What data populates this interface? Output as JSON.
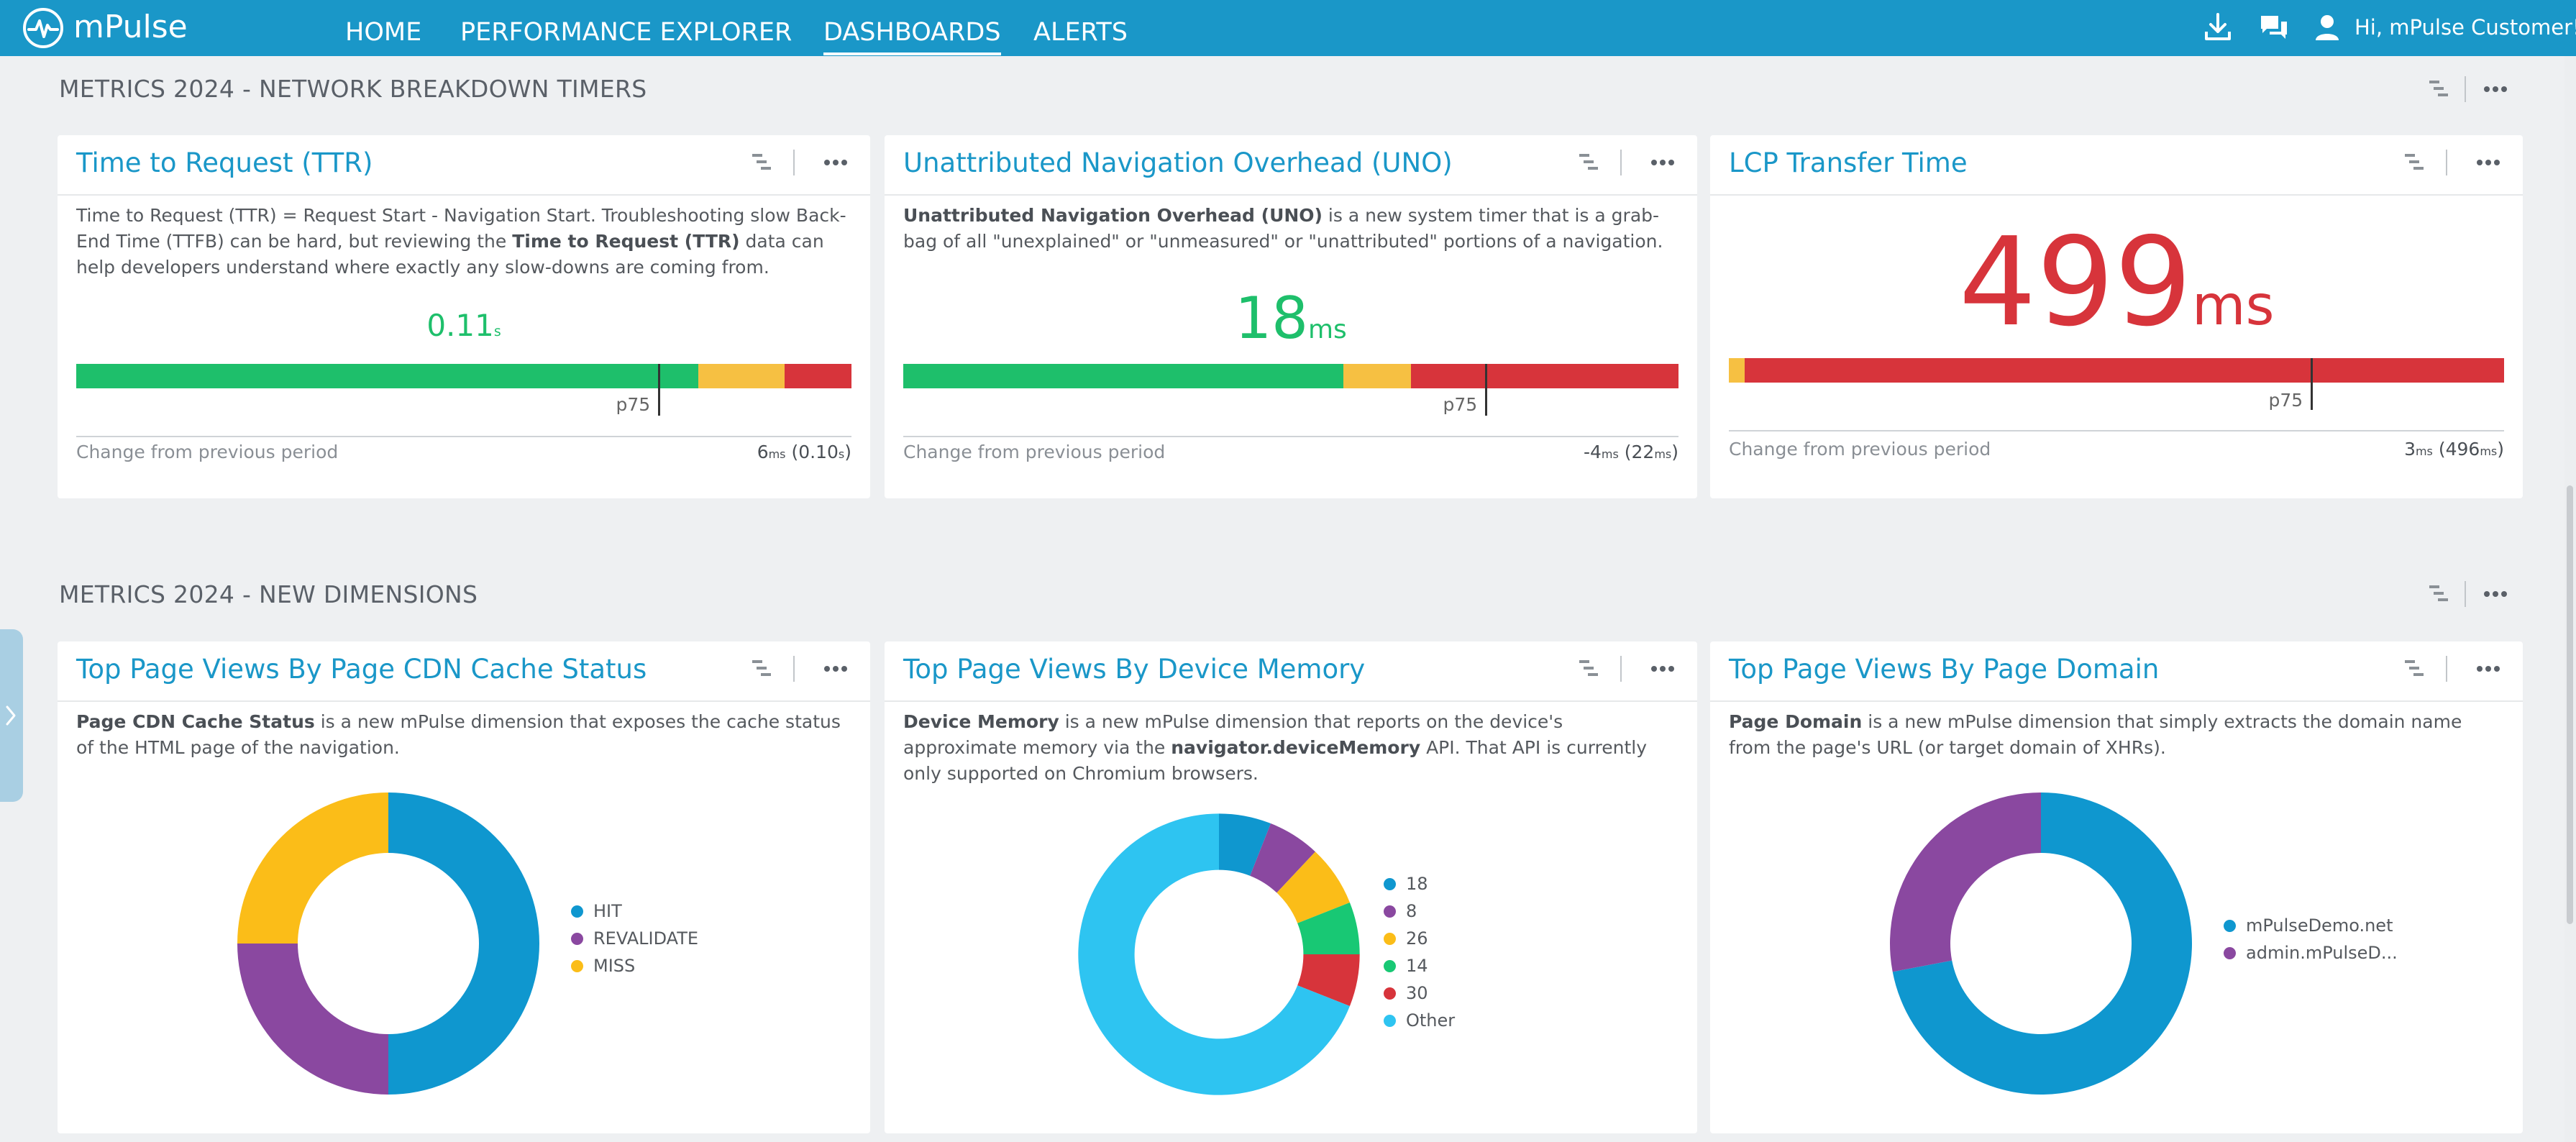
{
  "app": {
    "name": "mPulse"
  },
  "nav": {
    "items": [
      {
        "label": "HOME"
      },
      {
        "label": "PERFORMANCE EXPLORER"
      },
      {
        "label": "DASHBOARDS",
        "active": true
      },
      {
        "label": "ALERTS"
      }
    ]
  },
  "header": {
    "greeting": "Hi, mPulse Customer!",
    "icons": [
      "download-icon",
      "chat-icon",
      "user-icon"
    ]
  },
  "sections": [
    {
      "title": "METRICS 2024 - NETWORK BREAKDOWN TIMERS"
    },
    {
      "title": "METRICS 2024 - NEW DIMENSIONS"
    }
  ],
  "metric_cards": [
    {
      "title": "Time to Request (TTR)",
      "desc": [
        {
          "t": "Time to Request (TTR) = Request Start - Navigation Start. Troubleshooting slow Back-End Time (TTFB) can be hard, but reviewing the "
        },
        {
          "t": "Time to Request (TTR)",
          "b": true
        },
        {
          "t": " data can help developers understand where exactly any slow-downs are coming from."
        }
      ],
      "value": "0.11",
      "unit": "s",
      "value_color": "#1ebf6b",
      "bar": [
        {
          "color": "#1ebf6b",
          "fraction": 0.802
        },
        {
          "color": "#f6c042",
          "fraction": 0.112
        },
        {
          "color": "#d7343b",
          "fraction": 0.086
        }
      ],
      "p75_label": "p75",
      "p75_fraction": 0.75,
      "change_label": "Change from previous period",
      "change_value": "6",
      "change_unit": "ms",
      "change_prev": "0.10",
      "change_prev_unit": "s"
    },
    {
      "title": "Unattributed Navigation Overhead (UNO)",
      "desc": [
        {
          "t": "Unattributed Navigation Overhead (UNO)",
          "b": true
        },
        {
          "t": " is a new system timer that is a grab-bag of all \"unexplained\" or \"unmeasured\" or \"unattributed\" portions of a navigation."
        }
      ],
      "value": "18",
      "unit": "ms",
      "value_color": "#1ebf6b",
      "bar": [
        {
          "color": "#1ebf6b",
          "fraction": 0.568
        },
        {
          "color": "#f6c042",
          "fraction": 0.087
        },
        {
          "color": "#d7343b",
          "fraction": 0.345
        }
      ],
      "p75_label": "p75",
      "p75_fraction": 0.75,
      "change_label": "Change from previous period",
      "change_value": "-4",
      "change_unit": "ms",
      "change_prev": "22",
      "change_prev_unit": "ms"
    },
    {
      "title": "LCP Transfer Time",
      "desc": [],
      "value": "499",
      "unit": "ms",
      "value_color": "#d7343b",
      "bar": [
        {
          "color": "#f6c042",
          "fraction": 0.02
        },
        {
          "color": "#d7343b",
          "fraction": 0.98
        }
      ],
      "p75_label": "p75",
      "p75_fraction": 0.75,
      "change_label": "Change from previous period",
      "change_value": "3",
      "change_unit": "ms",
      "change_prev": "496",
      "change_prev_unit": "ms"
    }
  ],
  "chart_data": [
    {
      "type": "pie",
      "title": "Top Page Views By Page CDN Cache Status",
      "desc": [
        {
          "t": "Page CDN Cache Status",
          "b": true
        },
        {
          "t": " is a new mPulse dimension that exposes the cache status of the HTML page of the navigation."
        }
      ],
      "slices": [
        {
          "label": "HIT",
          "value": 50,
          "color": "#0f97cf"
        },
        {
          "label": "REVALIDATE",
          "value": 25,
          "color": "#8a48a0"
        },
        {
          "label": "MISS",
          "value": 25,
          "color": "#fbbd18"
        }
      ]
    },
    {
      "type": "pie",
      "title": "Top Page Views By Device Memory",
      "desc": [
        {
          "t": "Device Memory",
          "b": true
        },
        {
          "t": " is a new mPulse dimension that reports on the device's approximate memory via the "
        },
        {
          "t": "navigator.deviceMemory",
          "b": true
        },
        {
          "t": " API. That API is currently only supported on Chromium browsers."
        }
      ],
      "slices": [
        {
          "label": "18",
          "value": 6,
          "color": "#0f97cf"
        },
        {
          "label": "8",
          "value": 6,
          "color": "#8a48a0"
        },
        {
          "label": "26",
          "value": 7,
          "color": "#fbbd18"
        },
        {
          "label": "14",
          "value": 6,
          "color": "#18c874"
        },
        {
          "label": "30",
          "value": 6,
          "color": "#d7343b"
        },
        {
          "label": "Other",
          "value": 69,
          "color": "#2ec4f1"
        }
      ]
    },
    {
      "type": "pie",
      "title": "Top Page Views By Page Domain",
      "desc": [
        {
          "t": "Page Domain",
          "b": true
        },
        {
          "t": " is a new mPulse dimension that simply extracts the domain name from the page's URL (or target domain of XHRs)."
        }
      ],
      "slices": [
        {
          "label": "mPulseDemo.net",
          "value": 72,
          "color": "#0f97cf"
        },
        {
          "label": "admin.mPulseD...",
          "value": 28,
          "color": "#8a48a0"
        }
      ]
    }
  ]
}
